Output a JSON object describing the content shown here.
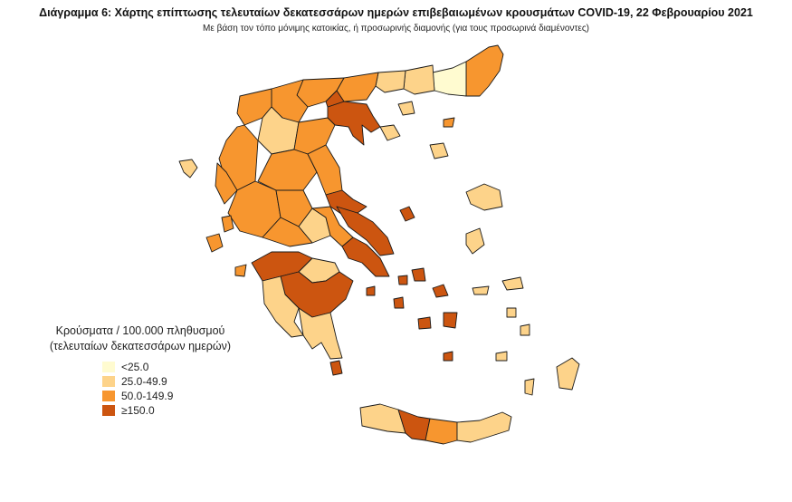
{
  "title": "Διάγραμμα 6: Χάρτης επίπτωσης τελευταίων δεκατεσσάρων ημερών επιβεβαιωμένων κρουσμάτων COVID-19, 22 Φεβρουαρίου 2021",
  "subtitle": "Με βάση τον τόπο μόνιμης κατοικίας, ή προσωρινής διαμονής (για τους προσωρινά διαμένοντες)",
  "legend": {
    "title_line1": "Κρούσματα / 100.000 πληθυσμού",
    "title_line2": "(τελευταίων δεκατεσσάρων ημερών)",
    "items": [
      {
        "label": "<25.0",
        "color": "#fffbd0"
      },
      {
        "label": "25.0-49.9",
        "color": "#fdd38a"
      },
      {
        "label": "50.0-149.9",
        "color": "#f7962f"
      },
      {
        "label": "≥150.0",
        "color": "#cc5510"
      }
    ]
  }
}
